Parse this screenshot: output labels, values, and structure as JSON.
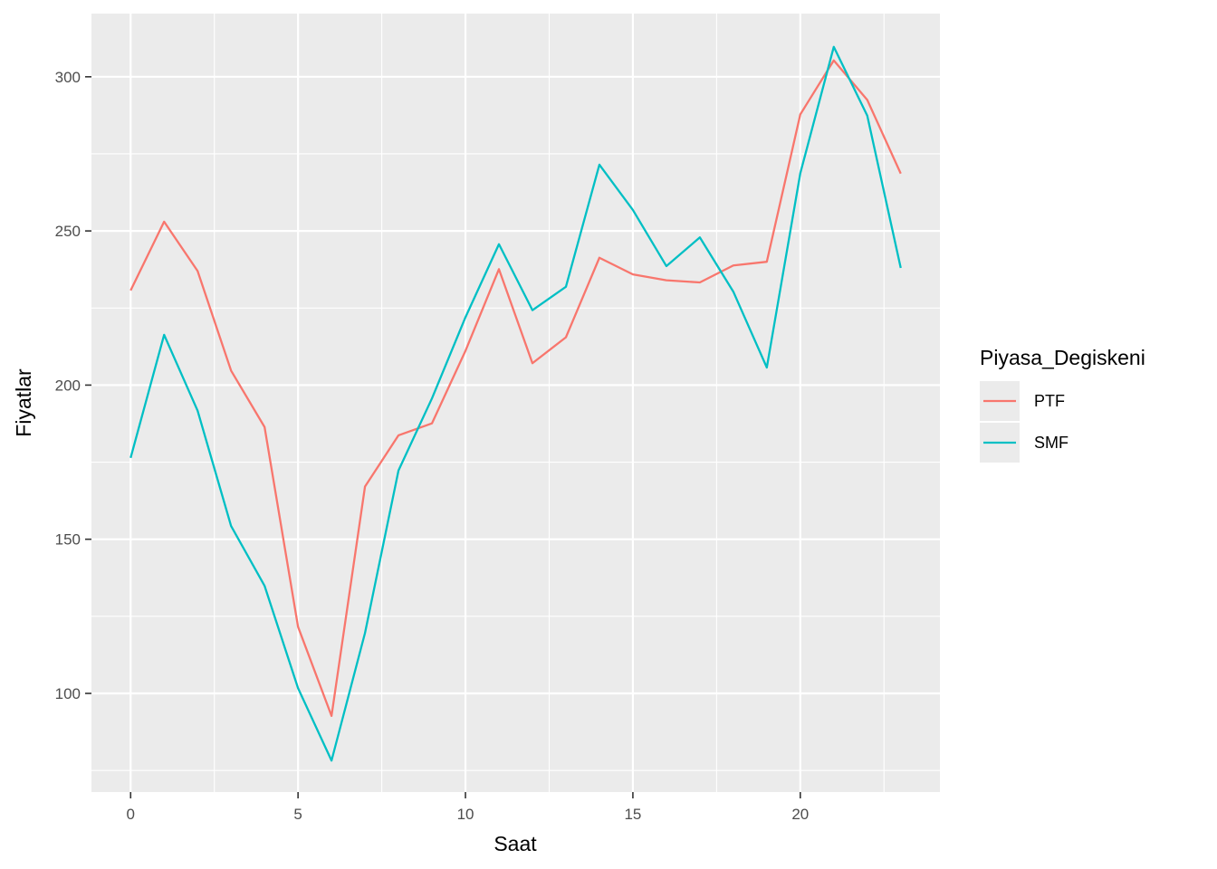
{
  "chart_data": {
    "type": "line",
    "xlabel": "Saat",
    "ylabel": "Fiyatlar",
    "xlim": [
      -1.17,
      24.17
    ],
    "ylim": [
      68,
      320.5
    ],
    "x_ticks": [
      0,
      5,
      10,
      15,
      20
    ],
    "y_ticks": [
      100,
      150,
      200,
      250,
      300
    ],
    "x_tick_labels": [
      "0",
      "5",
      "10",
      "15",
      "20"
    ],
    "y_tick_labels": [
      "100",
      "150",
      "200",
      "250",
      "300"
    ],
    "grid": true,
    "legend": {
      "title": "Piyasa_Degiskeni",
      "position": "right"
    },
    "x": [
      0,
      1,
      2,
      3,
      4,
      5,
      6,
      7,
      8,
      9,
      10,
      11,
      12,
      13,
      14,
      15,
      16,
      17,
      18,
      19,
      20,
      21,
      22,
      23
    ],
    "series": [
      {
        "name": "PTF",
        "color": "#F8766D",
        "values": [
          230.7,
          253.0,
          237.0,
          204.7,
          186.4,
          121.6,
          92.7,
          167.1,
          183.7,
          187.6,
          211.1,
          237.6,
          207.1,
          215.5,
          241.3,
          235.9,
          234.0,
          233.3,
          238.8,
          240.0,
          287.8,
          305.3,
          292.5,
          268.6
        ]
      },
      {
        "name": "SMF",
        "color": "#00BFC4",
        "values": [
          176.4,
          216.3,
          191.7,
          154.3,
          134.9,
          101.7,
          78.2,
          119.6,
          172.3,
          195.7,
          222.0,
          245.7,
          224.3,
          231.9,
          271.5,
          256.8,
          238.6,
          247.9,
          230.3,
          205.7,
          268.7,
          309.7,
          287.4,
          238.0
        ]
      }
    ]
  }
}
